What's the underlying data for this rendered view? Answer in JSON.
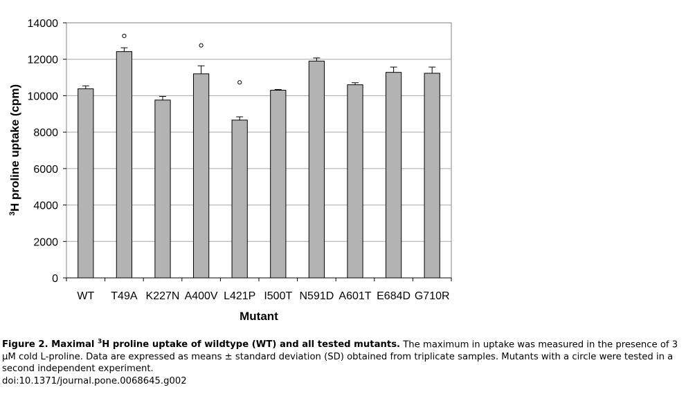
{
  "chart_data": {
    "type": "bar",
    "categories": [
      "WT",
      "T49A",
      "K227N",
      "A400V",
      "L421P",
      "I500T",
      "N591D",
      "A601T",
      "E684D",
      "G710R"
    ],
    "values": [
      10380,
      12420,
      9760,
      11200,
      8660,
      10300,
      11900,
      10600,
      11280,
      11230
    ],
    "error_sd": [
      160,
      210,
      200,
      440,
      180,
      40,
      170,
      110,
      290,
      340
    ],
    "circle_marker_values": [
      null,
      13280,
      null,
      12760,
      10730,
      null,
      null,
      null,
      null,
      null
    ],
    "title": "",
    "xlabel": "Mutant",
    "ylabel_sup": "3",
    "ylabel": "H proline uptake (cpm)",
    "ylim": [
      0,
      14000
    ],
    "yticks": [
      0,
      2000,
      4000,
      6000,
      8000,
      10000,
      12000,
      14000
    ],
    "grid": true,
    "bar_color": "#b3b3b3",
    "plot_background": "#ffffff",
    "gridline_color": "#a6a6a6"
  },
  "caption": {
    "lead_pre": "Figure 2. Maximal ",
    "lead_sup": "3",
    "lead_post": "H proline uptake of wildtype (WT) and all tested mutants.",
    "body": " The maximum in uptake was measured in the presence of 3 µM cold L-proline. Data are expressed as means ± standard deviation (SD) obtained from triplicate samples. Mutants with a circle were tested in a second independent experiment.",
    "doi": "doi:10.1371/journal.pone.0068645.g002"
  }
}
